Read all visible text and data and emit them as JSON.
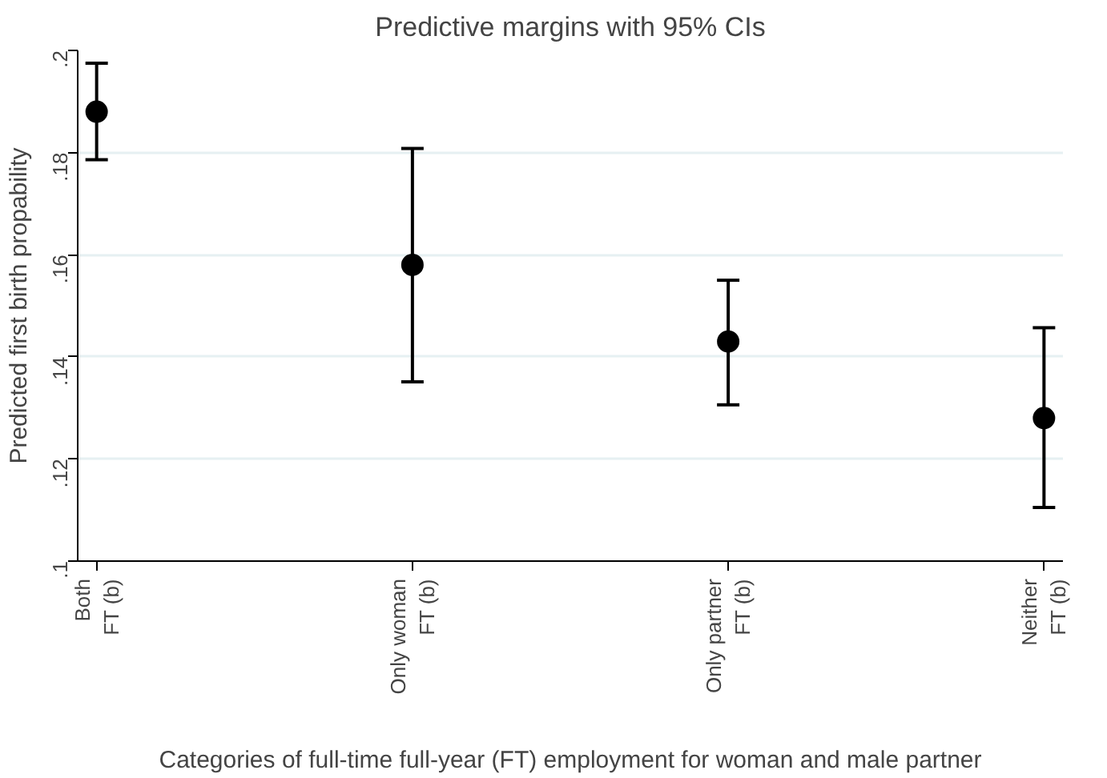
{
  "chart_data": {
    "type": "scatter",
    "title": "Predictive margins with 95% CIs",
    "xlabel": "Categories of full-time full-year (FT) employment for woman and male partner",
    "ylabel": "Predicted first birth propability",
    "categories": [
      "Both\nFT (b)",
      "Only woman\nFT (b)",
      "Only partner\nFT (b)",
      "Neither\nFT (b)"
    ],
    "series": [
      {
        "color": "#000000",
        "values": [
          0.188,
          0.158,
          0.143,
          0.128
        ],
        "errors": [
          [
            0.1786,
            0.1975
          ],
          [
            0.1351,
            0.1808
          ],
          [
            0.1306,
            0.155
          ],
          [
            0.1105,
            0.1457
          ]
        ]
      }
    ],
    "ylim": [
      0.1,
      0.2
    ],
    "yticks": [
      {
        "value": 0.1,
        "label": ".1"
      },
      {
        "value": 0.12,
        "label": ".12"
      },
      {
        "value": 0.14,
        "label": ".14"
      },
      {
        "value": 0.16,
        "label": ".16"
      },
      {
        "value": 0.18,
        "label": ".18"
      },
      {
        "value": 0.2,
        "label": ".2"
      }
    ],
    "grid": "y",
    "marker": "circle"
  }
}
